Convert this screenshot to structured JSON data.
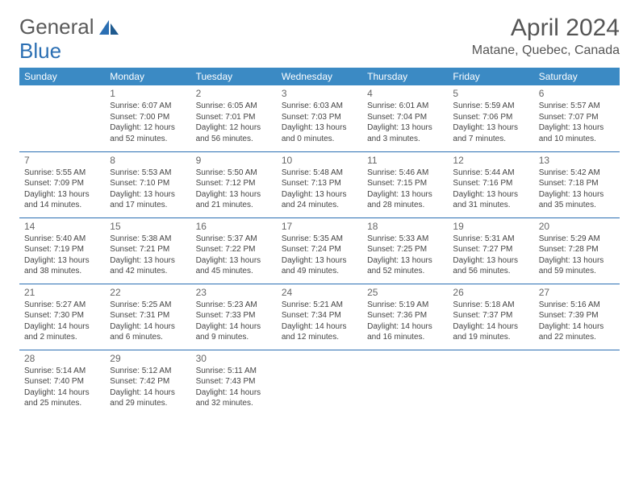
{
  "logo": {
    "text1": "General",
    "text2": "Blue"
  },
  "title": "April 2024",
  "location": "Matane, Quebec, Canada",
  "colors": {
    "header_bg": "#3b8ac4",
    "header_text": "#ffffff",
    "rule": "#2b6fb3",
    "logo_gray": "#5a5a5a",
    "logo_blue": "#2b6fb3",
    "body_text": "#444"
  },
  "dayHeaders": [
    "Sunday",
    "Monday",
    "Tuesday",
    "Wednesday",
    "Thursday",
    "Friday",
    "Saturday"
  ],
  "weeks": [
    [
      null,
      {
        "n": "1",
        "sr": "6:07 AM",
        "ss": "7:00 PM",
        "dl": "12 hours and 52 minutes."
      },
      {
        "n": "2",
        "sr": "6:05 AM",
        "ss": "7:01 PM",
        "dl": "12 hours and 56 minutes."
      },
      {
        "n": "3",
        "sr": "6:03 AM",
        "ss": "7:03 PM",
        "dl": "13 hours and 0 minutes."
      },
      {
        "n": "4",
        "sr": "6:01 AM",
        "ss": "7:04 PM",
        "dl": "13 hours and 3 minutes."
      },
      {
        "n": "5",
        "sr": "5:59 AM",
        "ss": "7:06 PM",
        "dl": "13 hours and 7 minutes."
      },
      {
        "n": "6",
        "sr": "5:57 AM",
        "ss": "7:07 PM",
        "dl": "13 hours and 10 minutes."
      }
    ],
    [
      {
        "n": "7",
        "sr": "5:55 AM",
        "ss": "7:09 PM",
        "dl": "13 hours and 14 minutes."
      },
      {
        "n": "8",
        "sr": "5:53 AM",
        "ss": "7:10 PM",
        "dl": "13 hours and 17 minutes."
      },
      {
        "n": "9",
        "sr": "5:50 AM",
        "ss": "7:12 PM",
        "dl": "13 hours and 21 minutes."
      },
      {
        "n": "10",
        "sr": "5:48 AM",
        "ss": "7:13 PM",
        "dl": "13 hours and 24 minutes."
      },
      {
        "n": "11",
        "sr": "5:46 AM",
        "ss": "7:15 PM",
        "dl": "13 hours and 28 minutes."
      },
      {
        "n": "12",
        "sr": "5:44 AM",
        "ss": "7:16 PM",
        "dl": "13 hours and 31 minutes."
      },
      {
        "n": "13",
        "sr": "5:42 AM",
        "ss": "7:18 PM",
        "dl": "13 hours and 35 minutes."
      }
    ],
    [
      {
        "n": "14",
        "sr": "5:40 AM",
        "ss": "7:19 PM",
        "dl": "13 hours and 38 minutes."
      },
      {
        "n": "15",
        "sr": "5:38 AM",
        "ss": "7:21 PM",
        "dl": "13 hours and 42 minutes."
      },
      {
        "n": "16",
        "sr": "5:37 AM",
        "ss": "7:22 PM",
        "dl": "13 hours and 45 minutes."
      },
      {
        "n": "17",
        "sr": "5:35 AM",
        "ss": "7:24 PM",
        "dl": "13 hours and 49 minutes."
      },
      {
        "n": "18",
        "sr": "5:33 AM",
        "ss": "7:25 PM",
        "dl": "13 hours and 52 minutes."
      },
      {
        "n": "19",
        "sr": "5:31 AM",
        "ss": "7:27 PM",
        "dl": "13 hours and 56 minutes."
      },
      {
        "n": "20",
        "sr": "5:29 AM",
        "ss": "7:28 PM",
        "dl": "13 hours and 59 minutes."
      }
    ],
    [
      {
        "n": "21",
        "sr": "5:27 AM",
        "ss": "7:30 PM",
        "dl": "14 hours and 2 minutes."
      },
      {
        "n": "22",
        "sr": "5:25 AM",
        "ss": "7:31 PM",
        "dl": "14 hours and 6 minutes."
      },
      {
        "n": "23",
        "sr": "5:23 AM",
        "ss": "7:33 PM",
        "dl": "14 hours and 9 minutes."
      },
      {
        "n": "24",
        "sr": "5:21 AM",
        "ss": "7:34 PM",
        "dl": "14 hours and 12 minutes."
      },
      {
        "n": "25",
        "sr": "5:19 AM",
        "ss": "7:36 PM",
        "dl": "14 hours and 16 minutes."
      },
      {
        "n": "26",
        "sr": "5:18 AM",
        "ss": "7:37 PM",
        "dl": "14 hours and 19 minutes."
      },
      {
        "n": "27",
        "sr": "5:16 AM",
        "ss": "7:39 PM",
        "dl": "14 hours and 22 minutes."
      }
    ],
    [
      {
        "n": "28",
        "sr": "5:14 AM",
        "ss": "7:40 PM",
        "dl": "14 hours and 25 minutes."
      },
      {
        "n": "29",
        "sr": "5:12 AM",
        "ss": "7:42 PM",
        "dl": "14 hours and 29 minutes."
      },
      {
        "n": "30",
        "sr": "5:11 AM",
        "ss": "7:43 PM",
        "dl": "14 hours and 32 minutes."
      },
      null,
      null,
      null,
      null
    ]
  ],
  "labels": {
    "sunrise": "Sunrise:",
    "sunset": "Sunset:",
    "daylight": "Daylight:"
  }
}
